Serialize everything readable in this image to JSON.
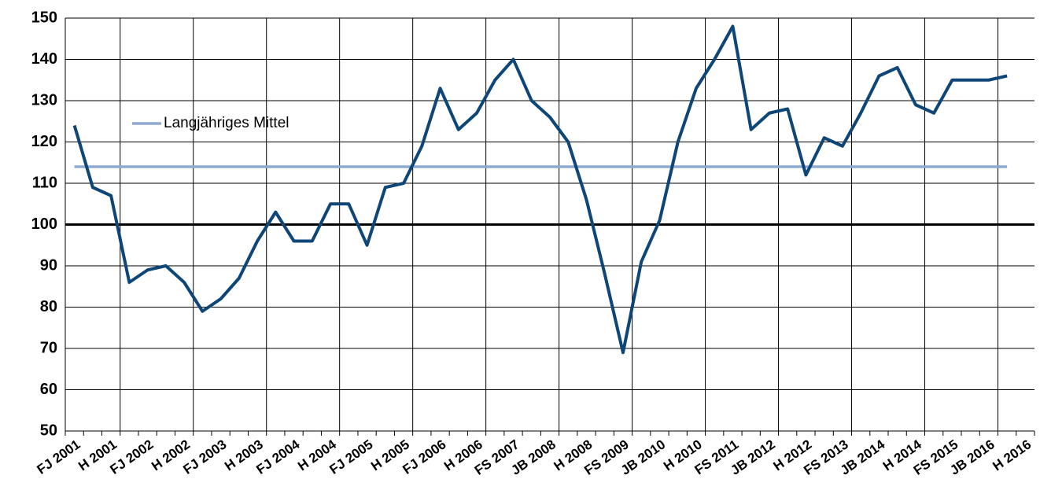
{
  "chart_data": {
    "type": "line",
    "categories": [
      "FJ 2001",
      null,
      "H 2001",
      null,
      "FJ 2002",
      null,
      "H 2002",
      null,
      "FJ 2003",
      null,
      "H 2003",
      null,
      "FJ 2004",
      null,
      "H 2004",
      null,
      "FJ 2005",
      null,
      "H 2005",
      null,
      "FJ 2006",
      null,
      "H 2006",
      null,
      "FS 2007",
      null,
      "JB 2008",
      null,
      "H 2008",
      null,
      "FS 2009",
      null,
      "JB 2010",
      null,
      "H 2010",
      null,
      "FS 2011",
      null,
      "JB 2012",
      null,
      "H 2012",
      null,
      "FS 2013",
      null,
      "JB 2014",
      null,
      "H 2014",
      null,
      "FS 2015",
      null,
      "JB 2016",
      null,
      "H 2016"
    ],
    "series": [
      {
        "color": "#0e4678",
        "values": [
          124,
          109,
          107,
          86,
          89,
          90,
          86,
          79,
          82,
          87,
          96,
          103,
          96,
          96,
          105,
          105,
          95,
          109,
          110,
          119,
          133,
          123,
          127,
          135,
          140,
          130,
          126,
          120,
          106,
          88,
          69,
          91,
          101,
          120,
          133,
          140,
          148,
          123,
          127,
          128,
          112,
          121,
          119,
          127,
          136,
          138,
          129,
          127,
          135,
          135,
          135,
          136,
          null
        ]
      },
      {
        "name": "Langjähriges Mittel",
        "color": "#8eaad1",
        "values": [
          114,
          114,
          114,
          114,
          114,
          114,
          114,
          114,
          114,
          114,
          114,
          114,
          114,
          114,
          114,
          114,
          114,
          114,
          114,
          114,
          114,
          114,
          114,
          114,
          114,
          114,
          114,
          114,
          114,
          114,
          114,
          114,
          114,
          114,
          114,
          114,
          114,
          114,
          114,
          114,
          114,
          114,
          114,
          114,
          114,
          114,
          114,
          114,
          114,
          114,
          114,
          114,
          null
        ]
      }
    ],
    "ylim": [
      50,
      150
    ],
    "yticks": [
      50,
      60,
      70,
      80,
      90,
      100,
      110,
      120,
      130,
      140,
      150
    ],
    "baseline": 100,
    "grid": true
  }
}
